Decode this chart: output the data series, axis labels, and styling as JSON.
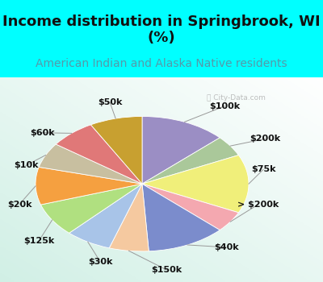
{
  "title": "Income distribution in Springbrook, WI\n(%)",
  "subtitle": "American Indian and Alaska Native residents",
  "background_cyan": "#00FFFF",
  "background_chart_color1": "#d4ede8",
  "background_chart_color2": "#f0faf8",
  "labels": [
    "$100k",
    "$200k",
    "$75k",
    "> $200k",
    "$40k",
    "$150k",
    "$30k",
    "$125k",
    "$20k",
    "$10k",
    "$60k",
    "$50k"
  ],
  "values": [
    13,
    5,
    14,
    5,
    12,
    6,
    7,
    8,
    9,
    6,
    7,
    8
  ],
  "colors": [
    "#9b8ec4",
    "#aac89a",
    "#f0ef7a",
    "#f4a8b0",
    "#7b8ccc",
    "#f5c9a0",
    "#a8c4e8",
    "#b0e080",
    "#f5a040",
    "#c8bfa0",
    "#e07878",
    "#c8a030"
  ],
  "label_fontsize": 8,
  "title_fontsize": 13,
  "subtitle_fontsize": 10,
  "subtitle_color": "#559aaa",
  "title_color": "#111111",
  "label_color": "#111111"
}
